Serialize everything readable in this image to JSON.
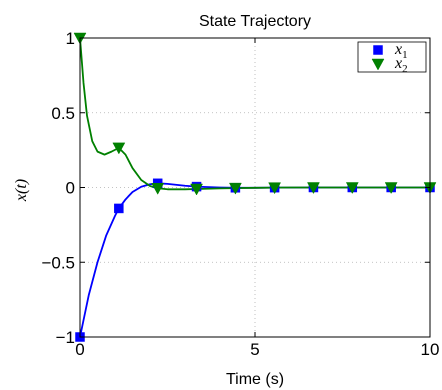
{
  "chart_data": {
    "type": "line",
    "title": "State Trajectory",
    "xlabel": "Time (s)",
    "ylabel": "x(t)",
    "xlim": [
      0,
      10
    ],
    "ylim": [
      -1,
      1
    ],
    "x_ticks": [
      "0",
      "5",
      "10"
    ],
    "y_ticks": [
      "−1",
      "−0.5",
      "0",
      "0.5",
      "1"
    ],
    "x_tick_values": [
      0,
      5,
      10
    ],
    "y_tick_values": [
      -1,
      -0.5,
      0,
      0.5,
      1
    ],
    "grid": true,
    "legend_position": "top-right",
    "series": [
      {
        "name": "x",
        "subscript": "1",
        "color": "#0000ff",
        "marker": "square",
        "x": [
          0,
          0.25,
          0.5,
          0.75,
          1.0,
          1.11,
          1.3,
          1.5,
          1.75,
          2.0,
          2.22,
          2.5,
          3.0,
          3.33,
          3.5,
          4.0,
          4.44,
          5.0,
          5.56,
          6.0,
          6.67,
          7.0,
          7.78,
          8.0,
          8.89,
          9.0,
          10.0
        ],
        "y": [
          -1.0,
          -0.72,
          -0.5,
          -0.32,
          -0.19,
          -0.14,
          -0.08,
          -0.03,
          0.005,
          0.022,
          0.028,
          0.024,
          0.012,
          0.006,
          0.004,
          0.0,
          -0.002,
          -0.002,
          -0.001,
          -0.001,
          0.0,
          0.0,
          0.0,
          0.0,
          0.0,
          0.0,
          0.0
        ],
        "marker_x": [
          0,
          1.11,
          2.22,
          3.33,
          4.44,
          5.56,
          6.67,
          7.78,
          8.89,
          10.0
        ],
        "marker_y": [
          -1.0,
          -0.14,
          0.028,
          0.006,
          -0.002,
          -0.001,
          0.0,
          0.0,
          0.0,
          0.0
        ]
      },
      {
        "name": "x",
        "subscript": "2",
        "color": "#008000",
        "marker": "triangle-down",
        "x": [
          0,
          0.1,
          0.2,
          0.35,
          0.5,
          0.7,
          0.9,
          1.11,
          1.3,
          1.5,
          1.75,
          2.0,
          2.22,
          2.5,
          3.0,
          3.33,
          3.5,
          4.0,
          4.44,
          5.0,
          5.56,
          6.0,
          6.67,
          7.0,
          7.78,
          8.0,
          8.89,
          9.0,
          10.0
        ],
        "y": [
          1.0,
          0.7,
          0.48,
          0.31,
          0.24,
          0.22,
          0.24,
          0.265,
          0.22,
          0.13,
          0.05,
          0.01,
          -0.005,
          -0.012,
          -0.012,
          -0.01,
          -0.009,
          -0.006,
          -0.004,
          -0.002,
          -0.001,
          0.0,
          0.0,
          0.0,
          0.0,
          0.0,
          0.0,
          0.0,
          0.0
        ],
        "marker_x": [
          0,
          1.11,
          2.22,
          3.33,
          4.44,
          5.56,
          6.67,
          7.78,
          8.89,
          10.0
        ],
        "marker_y": [
          1.0,
          0.265,
          -0.005,
          -0.01,
          -0.004,
          -0.001,
          0.0,
          0.0,
          0.0,
          0.0
        ]
      }
    ]
  }
}
